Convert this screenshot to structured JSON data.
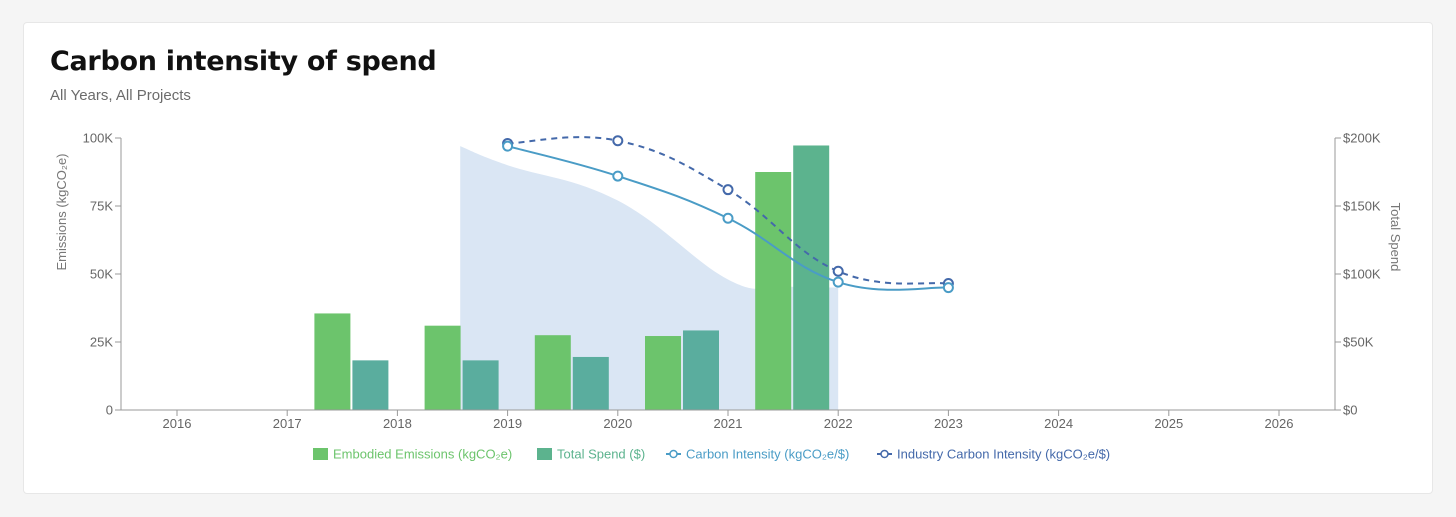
{
  "card": {
    "title": "Carbon intensity of spend",
    "subtitle": "All Years, All Projects"
  },
  "colors": {
    "embodied": "#6cc46c",
    "spend": "#5cb38e",
    "spend_dark": "#5aad9e",
    "intensity": "#4a9cc6",
    "industry": "#4469aa",
    "area": "#dae6f4",
    "axis": "#999999"
  },
  "chart_data": {
    "type": "bar",
    "title": "Carbon intensity of spend",
    "subtitle": "All Years, All Projects",
    "x_ticks": [
      "2016",
      "2017",
      "2018",
      "2019",
      "2020",
      "2021",
      "2022",
      "2023",
      "2024",
      "2025",
      "2026"
    ],
    "y_left": {
      "label": "Emissions (kgCO₂e)",
      "range": [
        0,
        100000
      ],
      "ticks": [
        0,
        25000,
        50000,
        75000,
        100000
      ],
      "tick_labels": [
        "0",
        "25K",
        "50K",
        "75K",
        "100K"
      ]
    },
    "y_right": {
      "label": "Total Spend",
      "range": [
        0,
        200000
      ],
      "ticks": [
        0,
        50000,
        100000,
        150000,
        200000
      ],
      "tick_labels": [
        "$0",
        "$50K",
        "$100K",
        "$150K",
        "$200K"
      ]
    },
    "grid": false,
    "legend_position": "bottom",
    "series": [
      {
        "name": "Embodied Emissions (kgCO₂e)",
        "type": "bar",
        "axis": "left",
        "x": [
          "2018",
          "2019",
          "2020",
          "2021",
          "2022"
        ],
        "values": [
          35500,
          31000,
          27500,
          27200,
          87500
        ]
      },
      {
        "name": "Total Spend ($)",
        "type": "bar",
        "axis": "right",
        "x": [
          "2018",
          "2019",
          "2020",
          "2021",
          "2022"
        ],
        "values": [
          36500,
          36500,
          39000,
          58500,
          194500
        ]
      },
      {
        "name": "Carbon Intensity (kgCO₂e/$)",
        "type": "line",
        "axis": "left",
        "x": [
          "2019",
          "2020",
          "2021",
          "2022",
          "2023"
        ],
        "values": [
          97000,
          86000,
          70500,
          47000,
          45000
        ]
      },
      {
        "name": "Industry Carbon Intensity (kgCO₂e/$)",
        "type": "line",
        "style": "dashed",
        "axis": "left",
        "x": [
          "2019",
          "2020",
          "2021",
          "2022",
          "2023"
        ],
        "values": [
          98000,
          99000,
          81000,
          51000,
          46500
        ]
      },
      {
        "type": "area",
        "axis": "left",
        "x": [
          2018.57,
          2019,
          2020,
          2021,
          2021.5,
          2022
        ],
        "values": [
          97000,
          90000,
          77000,
          48000,
          45500,
          45000
        ]
      }
    ]
  }
}
